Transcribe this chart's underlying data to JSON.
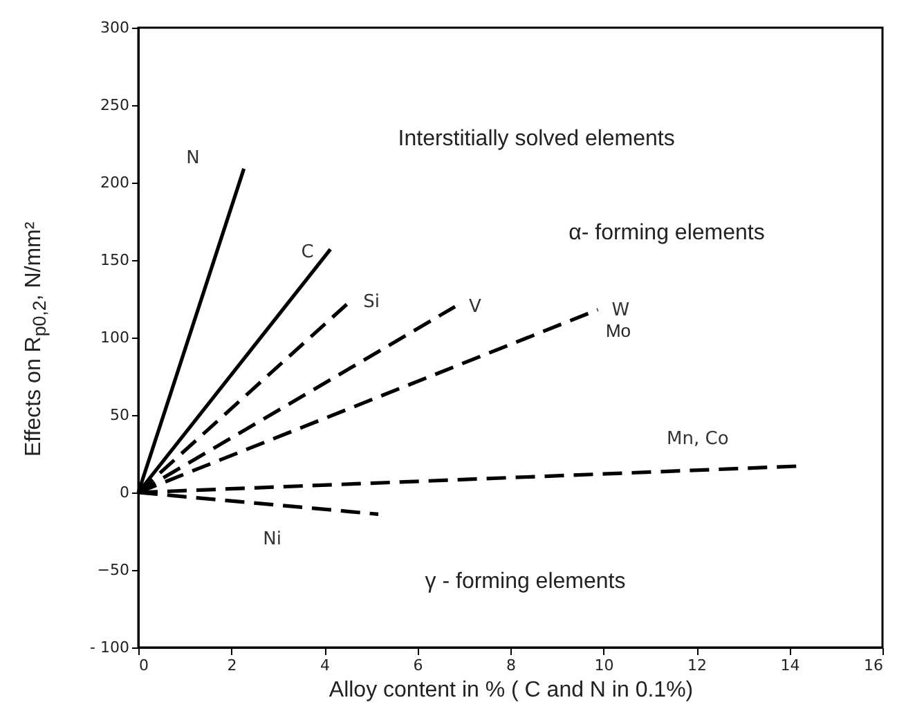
{
  "chart_data": {
    "type": "line",
    "xlabel": "Alloy content in % ( C and N in 0.1%)",
    "ylabel": "Effects on R$_{p0,2}$, N/mm²",
    "xlim": [
      0,
      16
    ],
    "xticks": [
      0,
      2,
      4,
      6,
      8,
      10,
      12,
      14,
      16
    ],
    "ylim": [
      -100,
      300
    ],
    "yticks": [
      {
        "value": -100,
        "label": "- 100"
      },
      -50,
      0,
      50,
      100,
      150,
      200,
      250,
      300
    ],
    "grid": false,
    "marker": "none",
    "series": [
      {
        "name": "N",
        "color": "#000000",
        "line_style": "solid",
        "x": [
          0,
          2.27
        ],
        "values": [
          0,
          209
        ]
      },
      {
        "name": "C",
        "color": "#000000",
        "line_style": "solid",
        "x": [
          0,
          4.13
        ],
        "values": [
          0,
          157
        ]
      },
      {
        "name": "Si",
        "color": "#000000",
        "line_style": "dashed",
        "x": [
          0,
          4.54
        ],
        "values": [
          0,
          123
        ]
      },
      {
        "name": "V",
        "color": "#000000",
        "line_style": "dashed",
        "x": [
          0,
          6.81
        ],
        "values": [
          0,
          120
        ]
      },
      {
        "name": "W",
        "color": "#000000",
        "line_style": "dashed",
        "x": [
          0,
          9.88
        ],
        "values": [
          0,
          118
        ]
      },
      {
        "name": "Mn, Co",
        "color": "#000000",
        "line_style": "dashed",
        "x": [
          0,
          14.18
        ],
        "values": [
          0,
          17
        ]
      },
      {
        "name": "Ni",
        "color": "#000000",
        "line_style": "dashed",
        "x": [
          0,
          5.16
        ],
        "values": [
          0,
          -14
        ]
      }
    ],
    "annotations": [
      "Interstitially  solved  elements",
      "α- forming elements",
      "Mo",
      "γ - forming elements"
    ]
  }
}
